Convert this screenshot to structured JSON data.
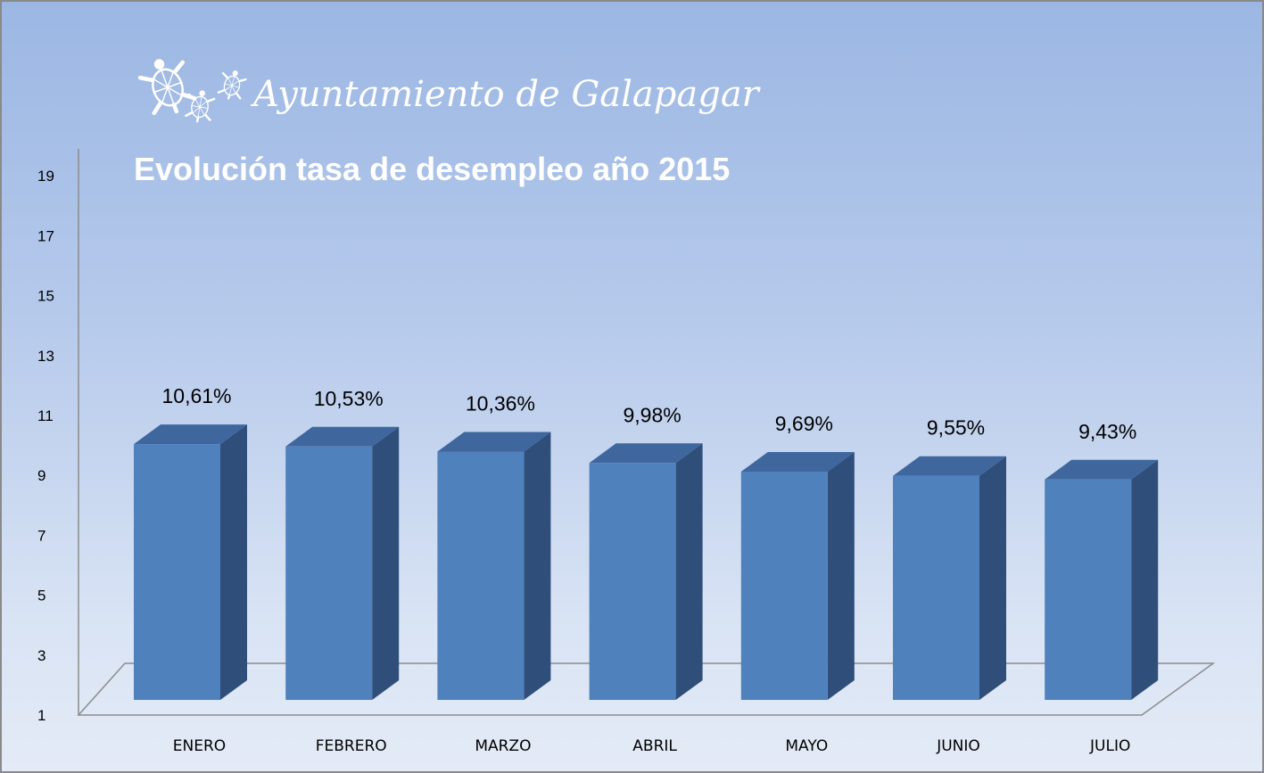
{
  "header": {
    "organization": "Ayuntamiento de Galapagar",
    "logo_icon": "turtle-icon"
  },
  "chart_data": {
    "type": "bar",
    "style": "3d-column",
    "title": "Evolución tasa de desempleo año 2015",
    "xlabel": "",
    "ylabel": "",
    "categories": [
      "ENERO",
      "FEBRERO",
      "MARZO",
      "ABRIL",
      "MAYO",
      "JUNIO",
      "JULIO"
    ],
    "values": [
      10.61,
      10.53,
      10.36,
      9.98,
      9.69,
      9.55,
      9.43
    ],
    "data_labels": [
      "10,61%",
      "10,53%",
      "10,36%",
      "9,98%",
      "9,69%",
      "9,55%",
      "9,43%"
    ],
    "ylim": [
      1,
      19
    ],
    "yticks": [
      "1",
      "3",
      "5",
      "7",
      "9",
      "11",
      "13",
      "15",
      "17",
      "19"
    ],
    "grid": false,
    "legend": "none",
    "colors": {
      "bar_front": "#4f81bd",
      "bar_side": "#2f4f7a",
      "bar_top": "#3f679e",
      "background_top": "#9bb7e3",
      "background_bottom": "#e4ebf7",
      "title_text": "#ffffff"
    }
  }
}
